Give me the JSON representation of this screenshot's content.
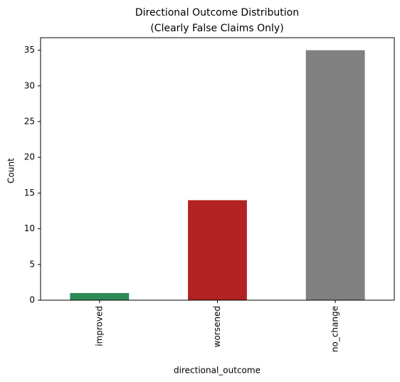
{
  "chart_data": {
    "type": "bar",
    "title": [
      "Directional Outcome Distribution",
      "(Clearly False Claims Only)"
    ],
    "x_label": "directional_outcome",
    "y_label": "Count",
    "categories": [
      "improved",
      "worsened",
      "no_change"
    ],
    "values": [
      1,
      14,
      35
    ],
    "colors": [
      "#2e8b57",
      "#b22222",
      "#808080"
    ],
    "ylim": [
      0,
      36.75
    ],
    "yticks": [
      0,
      5,
      10,
      15,
      20,
      25,
      30,
      35
    ],
    "grid": false
  }
}
